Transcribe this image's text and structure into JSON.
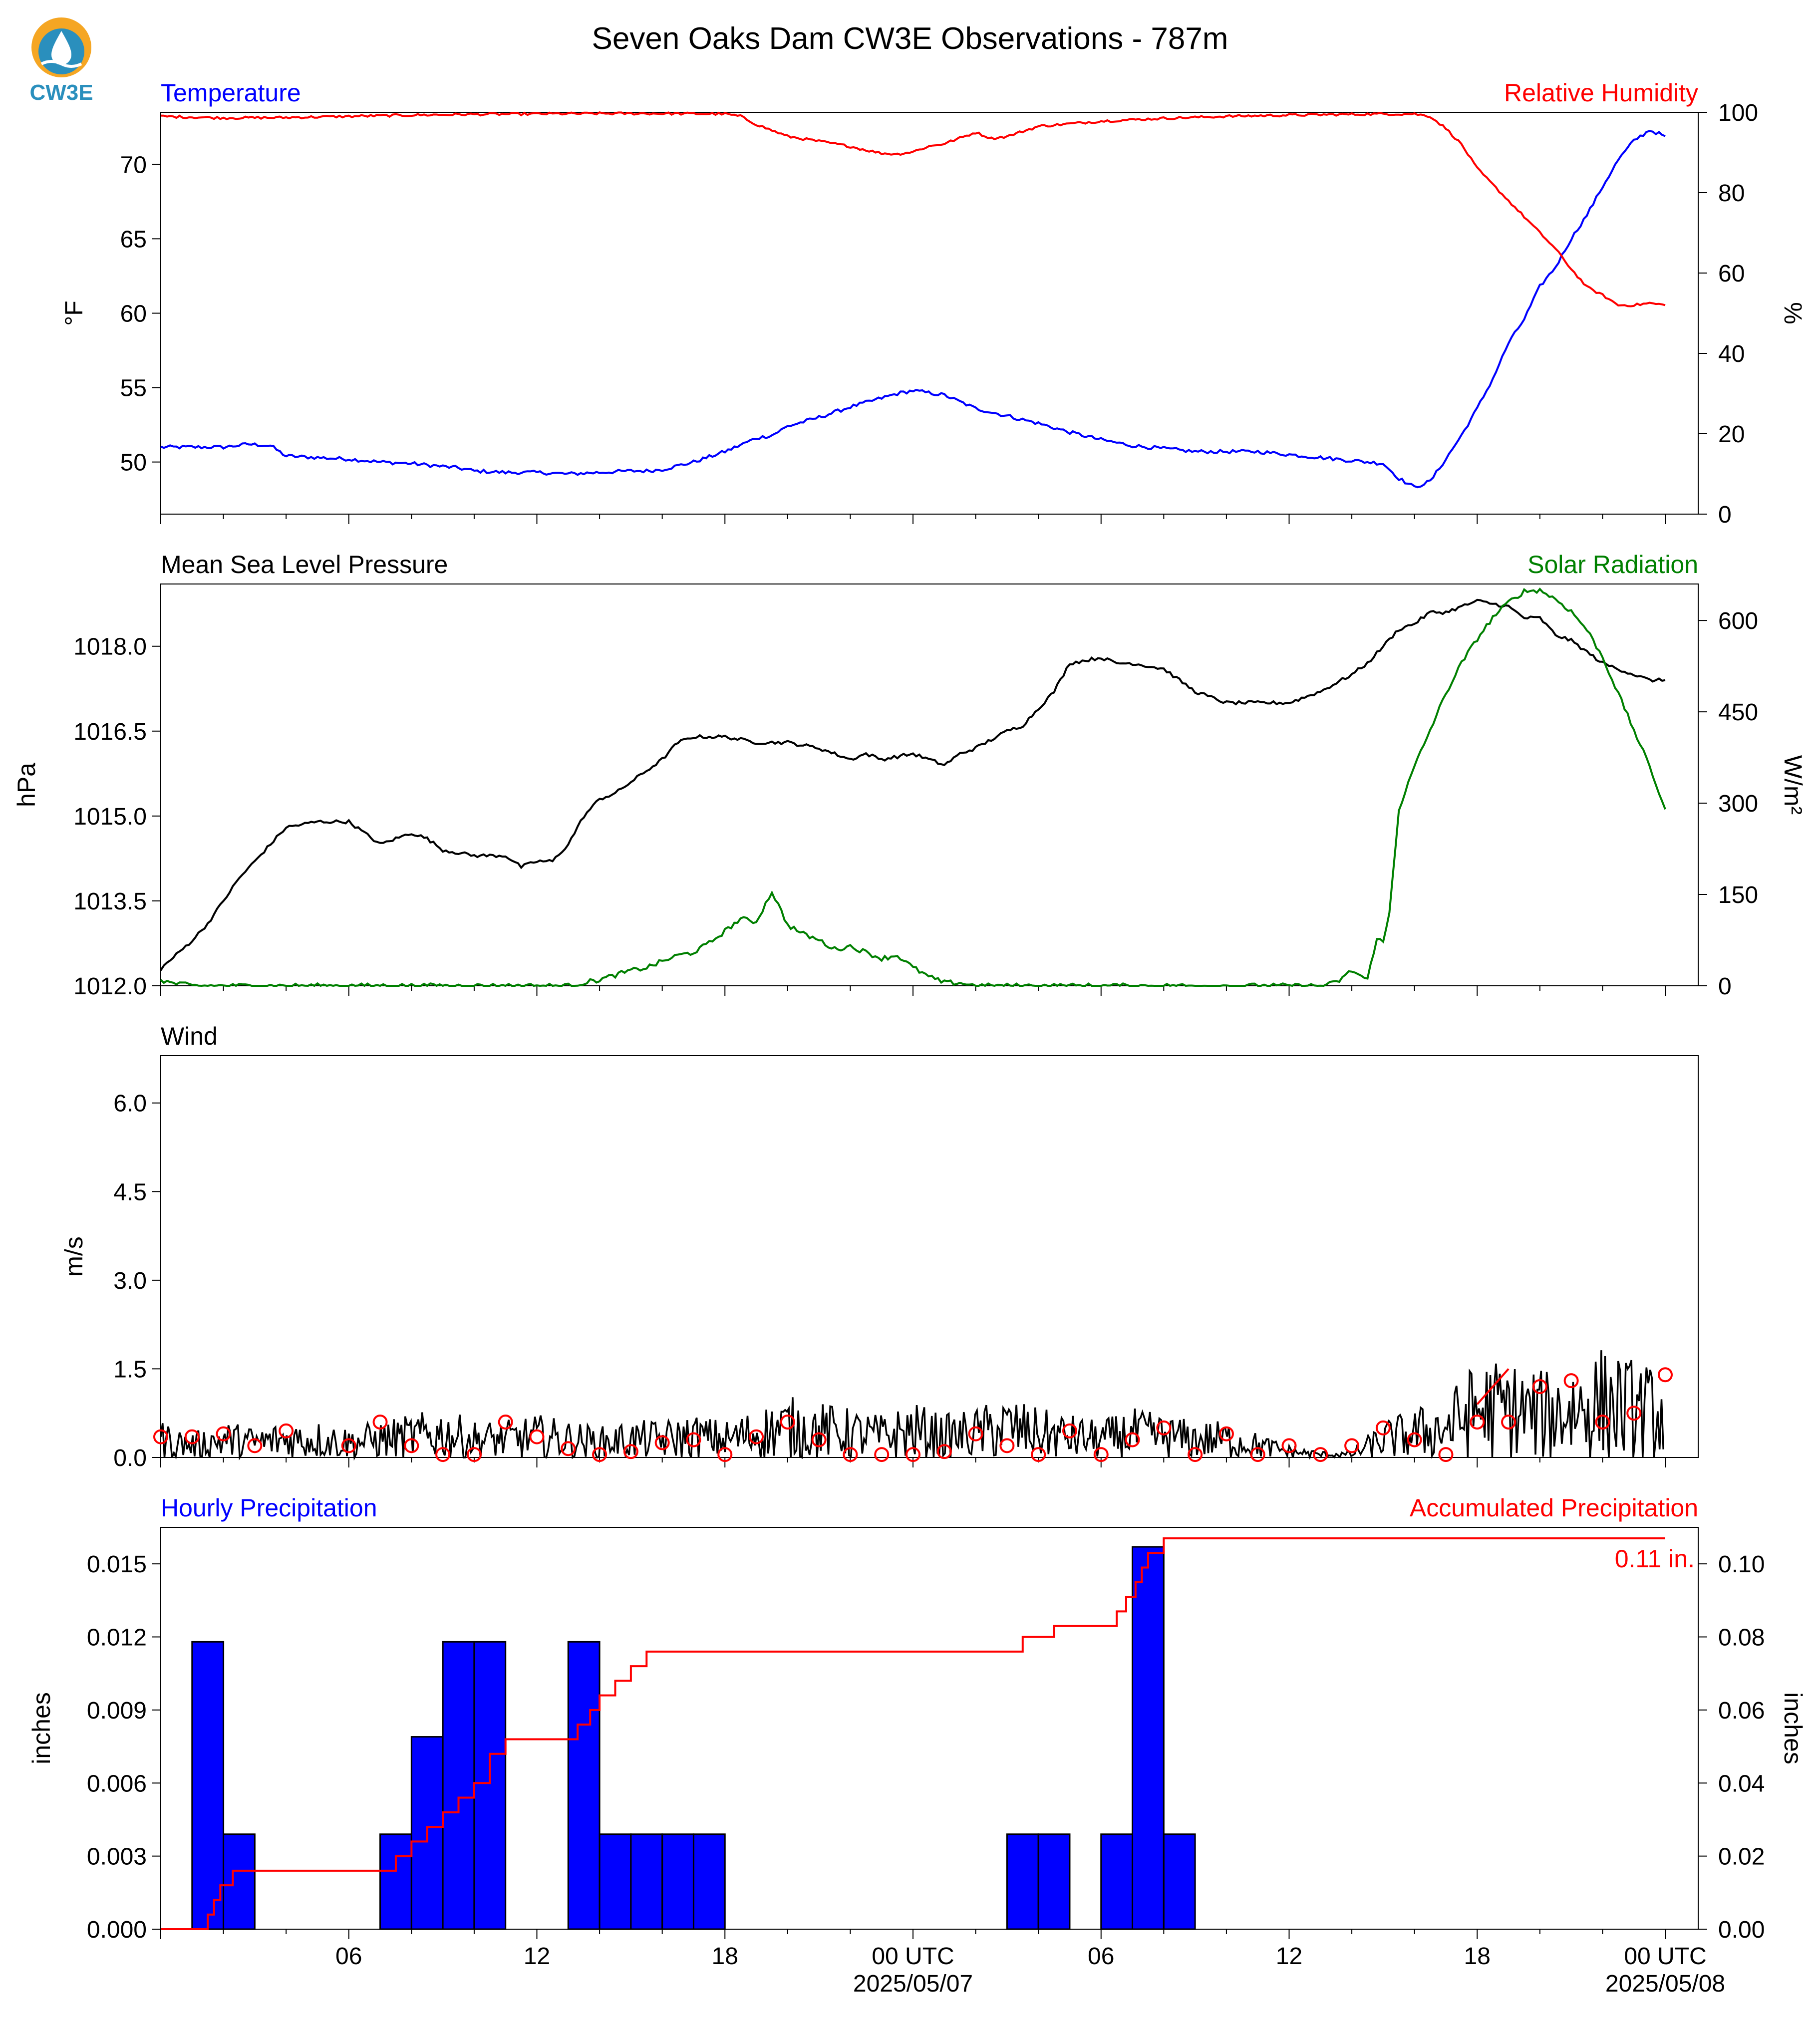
{
  "figure": {
    "title": "Seven Oaks Dam CW3E Observations - 787m",
    "logo_text": "CW3E"
  },
  "x_axis": {
    "ticks": [
      {
        "hour": 6,
        "label": "06"
      },
      {
        "hour": 12,
        "label": "12"
      },
      {
        "hour": 18,
        "label": "18"
      },
      {
        "hour": 24,
        "label": "00 UTC",
        "date": "2025/05/07"
      },
      {
        "hour": 30,
        "label": "06"
      },
      {
        "hour": 36,
        "label": "12"
      },
      {
        "hour": 42,
        "label": "18"
      },
      {
        "hour": 48,
        "label": "00 UTC",
        "date": "2025/05/08"
      }
    ]
  },
  "colors": {
    "temperature": "#0000ff",
    "humidity": "#ff0000",
    "pressure": "#000000",
    "solar": "#008000",
    "wind": "#000000",
    "gust": "#ff0000",
    "hourly_precip": "#0000ff",
    "accum_precip": "#ff0000"
  },
  "chart_data": [
    {
      "type": "line",
      "panel": "temperature-humidity",
      "left_title": "Temperature",
      "right_title": "Relative Humidity",
      "ylabel_left": "°F",
      "ylabel_right": "%",
      "ylim_left": [
        46.5,
        73.5
      ],
      "ylim_right": [
        0,
        100
      ],
      "yticks_left": [
        50,
        55,
        60,
        65,
        70
      ],
      "yticks_right": [
        0,
        20,
        40,
        60,
        80,
        100
      ],
      "series": [
        {
          "name": "Temperature",
          "axis": "left",
          "x": [
            0,
            1,
            2,
            2.8,
            3.5,
            4,
            5,
            6,
            7,
            8,
            9,
            9.5,
            10,
            11,
            12,
            13,
            14,
            15,
            15.5,
            16,
            17,
            18,
            19,
            19.5,
            20,
            21,
            22,
            23,
            23.5,
            24,
            25,
            26,
            27,
            28,
            29,
            30,
            31,
            32,
            33,
            34,
            35,
            36,
            37,
            38,
            38.5,
            39,
            39.5,
            40,
            40.5,
            41,
            41.5,
            42,
            42.5,
            43,
            43.5,
            44,
            44.5,
            45,
            45.5,
            46,
            46.5,
            47,
            47.5,
            48
          ],
          "y": [
            51.0,
            51.0,
            51.0,
            51.2,
            51.1,
            50.4,
            50.3,
            50.2,
            50.0,
            49.9,
            49.7,
            49.6,
            49.4,
            49.3,
            49.3,
            49.2,
            49.3,
            49.4,
            49.4,
            49.5,
            50.0,
            50.7,
            51.6,
            51.8,
            52.4,
            53.0,
            53.7,
            54.3,
            54.6,
            54.8,
            54.5,
            53.6,
            53.1,
            52.6,
            52.0,
            51.5,
            51.1,
            50.9,
            50.7,
            50.7,
            50.7,
            50.5,
            50.3,
            50.1,
            50.0,
            49.9,
            48.9,
            48.3,
            48.7,
            50.2,
            51.8,
            53.6,
            55.6,
            58.0,
            59.6,
            61.8,
            63.1,
            65.0,
            66.6,
            68.5,
            70.3,
            71.6,
            72.3,
            71.9
          ]
        },
        {
          "name": "Relative Humidity",
          "axis": "right",
          "x": [
            0,
            1,
            2,
            4,
            6,
            8,
            10,
            12,
            14,
            16,
            18,
            18.5,
            19,
            20,
            21,
            22,
            22.5,
            23,
            23.5,
            24,
            24.5,
            25,
            26,
            26.5,
            27,
            28,
            30,
            32,
            34,
            36,
            38,
            39,
            39.5,
            40,
            40.5,
            41,
            41.5,
            42,
            42.5,
            43,
            43.5,
            44,
            44.5,
            45,
            45.5,
            46,
            46.5,
            47,
            47.5,
            48
          ],
          "y": [
            99,
            98.8,
            98.6,
            98.7,
            99.0,
            99.3,
            99.5,
            99.6,
            99.7,
            99.7,
            99.6,
            99.0,
            97.0,
            94.0,
            92.8,
            91.5,
            90.6,
            89.8,
            89.6,
            90.2,
            91.5,
            92.2,
            95.0,
            93.5,
            94.0,
            96.5,
            97.8,
            98.5,
            99.0,
            99.3,
            99.5,
            99.6,
            99.6,
            99.6,
            99.0,
            96.0,
            92.0,
            86.0,
            82.0,
            78.0,
            74.0,
            70.0,
            66.0,
            61.0,
            56.5,
            54.5,
            52.0,
            52.0,
            52.5,
            52.0
          ]
        }
      ]
    },
    {
      "type": "line",
      "panel": "pressure-solar",
      "left_title": "Mean Sea Level Pressure",
      "right_title": "Solar Radiation",
      "ylabel_left": "hPa",
      "ylabel_right": "W/m²",
      "ylim_left": [
        1012.0,
        1019.1
      ],
      "ylim_right": [
        0,
        660
      ],
      "yticks_left": [
        1012.0,
        1013.5,
        1015.0,
        1016.5,
        1018.0
      ],
      "yticks_right": [
        0,
        150,
        300,
        450,
        600
      ],
      "series": [
        {
          "name": "Mean Sea Level Pressure",
          "axis": "left",
          "x": [
            0,
            1,
            1.5,
            2,
            2.5,
            3,
            3.5,
            4,
            5,
            6,
            7,
            7.5,
            8,
            8.5,
            9,
            10,
            11,
            11.5,
            12,
            12.5,
            13,
            13.5,
            14,
            14.5,
            15,
            15.5,
            16,
            16.5,
            17,
            18,
            19,
            20,
            21,
            22,
            22.5,
            23,
            24,
            25,
            25.5,
            26,
            27,
            27.5,
            28,
            28.5,
            29,
            30,
            30.5,
            31,
            32,
            33,
            33.5,
            34,
            35,
            36,
            37,
            38,
            38.5,
            39,
            39.5,
            40,
            40.5,
            41,
            42,
            43,
            43.5,
            44,
            44.5,
            45,
            46,
            47,
            47.5,
            48
          ],
          "y": [
            1012.3,
            1012.8,
            1013.1,
            1013.5,
            1013.9,
            1014.2,
            1014.5,
            1014.8,
            1014.9,
            1014.9,
            1014.5,
            1014.6,
            1014.7,
            1014.6,
            1014.4,
            1014.3,
            1014.3,
            1014.1,
            1014.2,
            1014.2,
            1014.5,
            1015.0,
            1015.3,
            1015.4,
            1015.6,
            1015.8,
            1016.0,
            1016.3,
            1016.4,
            1016.4,
            1016.3,
            1016.3,
            1016.2,
            1016.0,
            1016.1,
            1016.0,
            1016.1,
            1015.9,
            1016.1,
            1016.2,
            1016.5,
            1016.6,
            1016.9,
            1017.2,
            1017.7,
            1017.8,
            1017.7,
            1017.7,
            1017.6,
            1017.2,
            1017.1,
            1017.0,
            1017.0,
            1017.0,
            1017.2,
            1017.5,
            1017.7,
            1018.0,
            1018.3,
            1018.4,
            1018.6,
            1018.6,
            1018.8,
            1018.7,
            1018.5,
            1018.5,
            1018.2,
            1018.1,
            1017.7,
            1017.5,
            1017.4,
            1017.4
          ]
        },
        {
          "name": "Solar Radiation",
          "axis": "right",
          "x": [
            0,
            0.3,
            1,
            12,
            13,
            14,
            15,
            15.5,
            16,
            16.5,
            17,
            17.5,
            18,
            18.5,
            19,
            19.5,
            20,
            20.5,
            21,
            21.5,
            22,
            22.5,
            23,
            23.5,
            24,
            24.5,
            25,
            25.5,
            26,
            27,
            36,
            37,
            37.5,
            38,
            38.5,
            38.8,
            39,
            39.2,
            39.5,
            40,
            40.5,
            41,
            41.5,
            42,
            42.5,
            43,
            43.5,
            44,
            44.5,
            45,
            45.5,
            46,
            46.5,
            47,
            47.5,
            48
          ],
          "y": [
            10,
            5,
            0,
            0,
            0,
            10,
            25,
            30,
            40,
            50,
            55,
            70,
            90,
            110,
            105,
            155,
            100,
            85,
            75,
            60,
            65,
            55,
            45,
            50,
            30,
            15,
            5,
            5,
            0,
            0,
            0,
            0,
            5,
            25,
            10,
            80,
            70,
            120,
            290,
            360,
            420,
            480,
            530,
            570,
            605,
            630,
            648,
            650,
            635,
            615,
            585,
            540,
            480,
            420,
            360,
            290
          ]
        }
      ]
    },
    {
      "type": "line",
      "panel": "wind",
      "left_title": "Wind",
      "ylabel_left": "m/s",
      "ylim_left": [
        0,
        6.8
      ],
      "yticks_left": [
        0.0,
        1.5,
        3.0,
        4.5,
        6.0
      ],
      "series": [
        {
          "name": "Wind",
          "x": [
            0,
            1,
            2,
            3,
            4,
            5,
            6,
            7,
            8,
            9,
            10,
            11,
            12,
            13,
            14,
            15,
            16,
            17,
            18,
            19,
            20,
            21,
            22,
            23,
            24,
            25,
            26,
            27,
            28,
            29,
            30,
            31,
            32,
            33,
            34,
            35,
            36,
            37,
            38,
            39,
            40,
            41,
            42,
            43,
            44,
            45,
            46,
            47,
            48
          ],
          "y": [
            0.3,
            0.2,
            0.3,
            0.25,
            0.3,
            0.3,
            0.25,
            0.3,
            0.35,
            0.4,
            0.3,
            0.3,
            0.35,
            0.3,
            0.25,
            0.3,
            0.3,
            0.35,
            0.3,
            0.4,
            0.5,
            0.45,
            0.4,
            0.35,
            0.45,
            0.35,
            0.4,
            0.5,
            0.4,
            0.35,
            0.3,
            0.4,
            0.35,
            0.3,
            0.3,
            0.2,
            0.1,
            0.05,
            0.05,
            0.3,
            0.4,
            0.5,
            0.8,
            0.8,
            0.7,
            0.8,
            0.9,
            0.8,
            0.7
          ]
        },
        {
          "name": "Gust",
          "x": [
            0,
            1,
            2,
            3,
            4,
            6,
            7,
            8,
            9,
            10,
            11,
            12,
            13,
            14,
            15,
            16,
            17,
            18,
            19,
            20,
            21,
            22,
            23,
            24,
            25,
            26,
            27,
            28,
            29,
            30,
            31,
            32,
            33,
            34,
            35,
            36,
            37,
            38,
            39,
            40,
            41,
            42,
            43,
            44,
            45,
            46,
            47,
            48
          ],
          "y": [
            0.35,
            0.35,
            0.4,
            0.2,
            0.45,
            0.2,
            0.6,
            0.2,
            0.05,
            0.05,
            0.6,
            0.35,
            0.15,
            0.05,
            0.1,
            0.25,
            0.3,
            0.05,
            0.35,
            0.6,
            0.3,
            0.05,
            0.05,
            0.05,
            0.1,
            0.4,
            0.2,
            0.05,
            0.45,
            0.05,
            0.3,
            0.5,
            0.05,
            0.4,
            0.05,
            0.2,
            0.05,
            0.2,
            0.5,
            0.3,
            0.05,
            0.6,
            0.6,
            1.2,
            1.3,
            0.6,
            0.75,
            1.4
          ]
        }
      ]
    },
    {
      "type": "bar",
      "panel": "precipitation",
      "left_title": "Hourly Precipitation",
      "right_title": "Accumulated Precipitation",
      "ylabel_left": "inches",
      "ylabel_right": "inches",
      "ylim_left": [
        0,
        0.0165
      ],
      "ylim_right": [
        0,
        0.11
      ],
      "yticks_left": [
        0.0,
        0.003,
        0.006,
        0.009,
        0.012,
        0.015
      ],
      "yticks_right": [
        0.0,
        0.02,
        0.04,
        0.06,
        0.08,
        0.1
      ],
      "annotation": "0.11 in.",
      "series": [
        {
          "name": "Hourly Precipitation",
          "axis": "left",
          "x": [
            1,
            2,
            7,
            8,
            9,
            10,
            13,
            14,
            15,
            16,
            17,
            27,
            28,
            30,
            31,
            32
          ],
          "y": [
            0.0118,
            0.0039,
            0.0039,
            0.0079,
            0.0118,
            0.0118,
            0.0118,
            0.0039,
            0.0039,
            0.0039,
            0.0039,
            0.0039,
            0.0039,
            0.0039,
            0.0157,
            0.0039
          ]
        },
        {
          "name": "Accumulated Precipitation",
          "axis": "right",
          "x": [
            0,
            1.4,
            1.5,
            1.7,
            1.9,
            2.1,
            2.3,
            2.6,
            3.0,
            7.0,
            7.5,
            8.0,
            8.5,
            9.0,
            9.5,
            10.0,
            10.5,
            11.0,
            13.0,
            13.3,
            13.7,
            14.0,
            14.5,
            15.0,
            15.5,
            16.0,
            16.5,
            27.5,
            28.5,
            30.5,
            30.8,
            31.1,
            31.3,
            31.5,
            32.0,
            32.5,
            48
          ],
          "y": [
            0,
            0,
            0.004,
            0.008,
            0.012,
            0.012,
            0.016,
            0.016,
            0.016,
            0.016,
            0.02,
            0.024,
            0.028,
            0.032,
            0.036,
            0.04,
            0.048,
            0.052,
            0.052,
            0.056,
            0.06,
            0.064,
            0.068,
            0.072,
            0.076,
            0.076,
            0.076,
            0.08,
            0.083,
            0.087,
            0.091,
            0.095,
            0.099,
            0.103,
            0.107,
            0.107,
            0.107
          ]
        }
      ]
    }
  ]
}
